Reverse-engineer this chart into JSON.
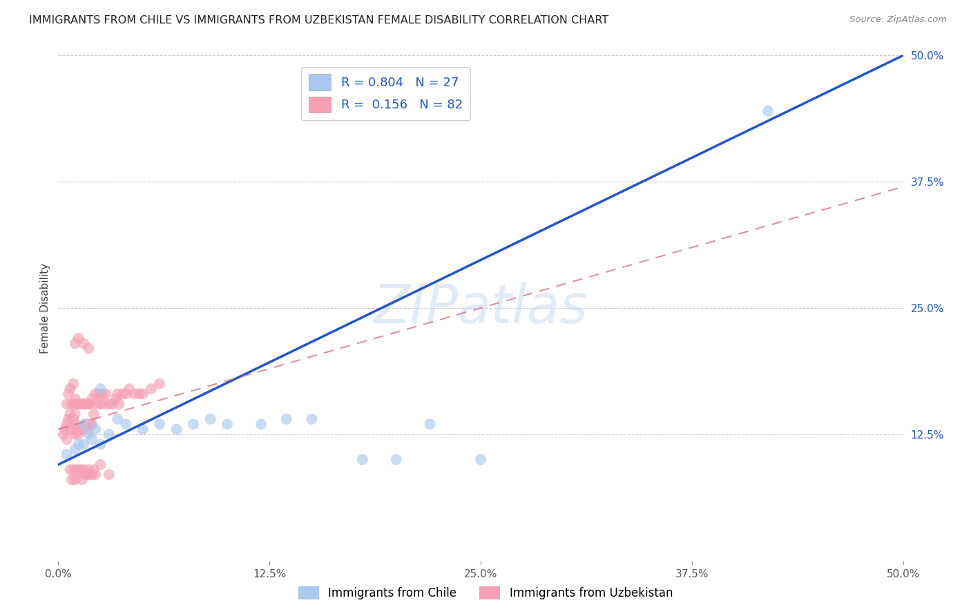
{
  "title": "IMMIGRANTS FROM CHILE VS IMMIGRANTS FROM UZBEKISTAN FEMALE DISABILITY CORRELATION CHART",
  "source": "Source: ZipAtlas.com",
  "ylabel": "Female Disability",
  "xlim": [
    0.0,
    0.5
  ],
  "ylim": [
    0.0,
    0.5
  ],
  "xtick_labels": [
    "0.0%",
    "12.5%",
    "25.0%",
    "37.5%",
    "50.0%"
  ],
  "ytick_labels": [
    "12.5%",
    "25.0%",
    "37.5%",
    "50.0%"
  ],
  "xtick_vals": [
    0.0,
    0.125,
    0.25,
    0.375,
    0.5
  ],
  "ytick_vals": [
    0.125,
    0.25,
    0.375,
    0.5
  ],
  "chile_color": "#aac8f0",
  "uzbekistan_color": "#f5a0b5",
  "chile_line_color": "#2255cc",
  "uzbekistan_line_color": "#cc6677",
  "legend_R_chile": "0.804",
  "legend_N_chile": "27",
  "legend_R_uzbekistan": "0.156",
  "legend_N_uzbekistan": "82",
  "watermark_text": "ZIPatlas",
  "chile_x": [
    0.005,
    0.01,
    0.012,
    0.015,
    0.015,
    0.018,
    0.02,
    0.022,
    0.025,
    0.025,
    0.03,
    0.035,
    0.04,
    0.05,
    0.06,
    0.07,
    0.08,
    0.09,
    0.1,
    0.12,
    0.135,
    0.15,
    0.18,
    0.2,
    0.22,
    0.25,
    0.42
  ],
  "chile_y": [
    0.105,
    0.11,
    0.115,
    0.115,
    0.135,
    0.125,
    0.12,
    0.13,
    0.115,
    0.17,
    0.125,
    0.14,
    0.135,
    0.13,
    0.135,
    0.13,
    0.135,
    0.14,
    0.135,
    0.135,
    0.14,
    0.14,
    0.1,
    0.1,
    0.135,
    0.1,
    0.445
  ],
  "uzbekistan_x": [
    0.003,
    0.004,
    0.005,
    0.005,
    0.005,
    0.006,
    0.006,
    0.007,
    0.007,
    0.007,
    0.008,
    0.008,
    0.009,
    0.009,
    0.009,
    0.01,
    0.01,
    0.01,
    0.01,
    0.011,
    0.011,
    0.012,
    0.012,
    0.013,
    0.013,
    0.014,
    0.014,
    0.015,
    0.015,
    0.016,
    0.016,
    0.017,
    0.017,
    0.018,
    0.018,
    0.019,
    0.019,
    0.02,
    0.02,
    0.021,
    0.022,
    0.023,
    0.024,
    0.025,
    0.026,
    0.027,
    0.028,
    0.03,
    0.032,
    0.034,
    0.035,
    0.036,
    0.038,
    0.04,
    0.042,
    0.045,
    0.048,
    0.05,
    0.055,
    0.06,
    0.007,
    0.008,
    0.009,
    0.01,
    0.011,
    0.012,
    0.013,
    0.014,
    0.015,
    0.016,
    0.017,
    0.018,
    0.019,
    0.02,
    0.021,
    0.022,
    0.025,
    0.03,
    0.01,
    0.012,
    0.015,
    0.018
  ],
  "uzbekistan_y": [
    0.125,
    0.13,
    0.12,
    0.135,
    0.155,
    0.14,
    0.165,
    0.13,
    0.145,
    0.17,
    0.13,
    0.155,
    0.14,
    0.155,
    0.175,
    0.125,
    0.135,
    0.145,
    0.16,
    0.13,
    0.155,
    0.125,
    0.155,
    0.13,
    0.155,
    0.13,
    0.155,
    0.13,
    0.155,
    0.135,
    0.155,
    0.135,
    0.155,
    0.13,
    0.155,
    0.135,
    0.155,
    0.135,
    0.16,
    0.145,
    0.165,
    0.155,
    0.165,
    0.155,
    0.165,
    0.155,
    0.165,
    0.155,
    0.155,
    0.16,
    0.165,
    0.155,
    0.165,
    0.165,
    0.17,
    0.165,
    0.165,
    0.165,
    0.17,
    0.175,
    0.09,
    0.08,
    0.09,
    0.08,
    0.09,
    0.085,
    0.09,
    0.08,
    0.09,
    0.085,
    0.085,
    0.09,
    0.085,
    0.085,
    0.09,
    0.085,
    0.095,
    0.085,
    0.215,
    0.22,
    0.215,
    0.21
  ]
}
